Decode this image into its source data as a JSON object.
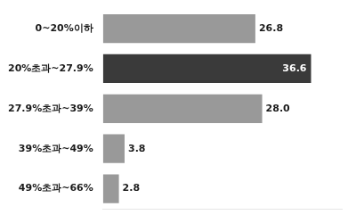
{
  "chart_data": {
    "type": "bar",
    "orientation": "horizontal",
    "categories": [
      "0~20%이하",
      "20%초과~27.9%",
      "27.9%초과~39%",
      "39%초과~49%",
      "49%초과~66%"
    ],
    "values": [
      26.8,
      36.6,
      28.0,
      3.8,
      2.8
    ],
    "value_labels": [
      "26.8",
      "36.6",
      "28.0",
      "3.8",
      "2.8"
    ],
    "colors": [
      "#999999",
      "#3a3a3a",
      "#999999",
      "#999999",
      "#999999"
    ],
    "xlim": [
      0,
      42
    ],
    "data_labels": true,
    "tick_labels": "y",
    "grid": false
  }
}
